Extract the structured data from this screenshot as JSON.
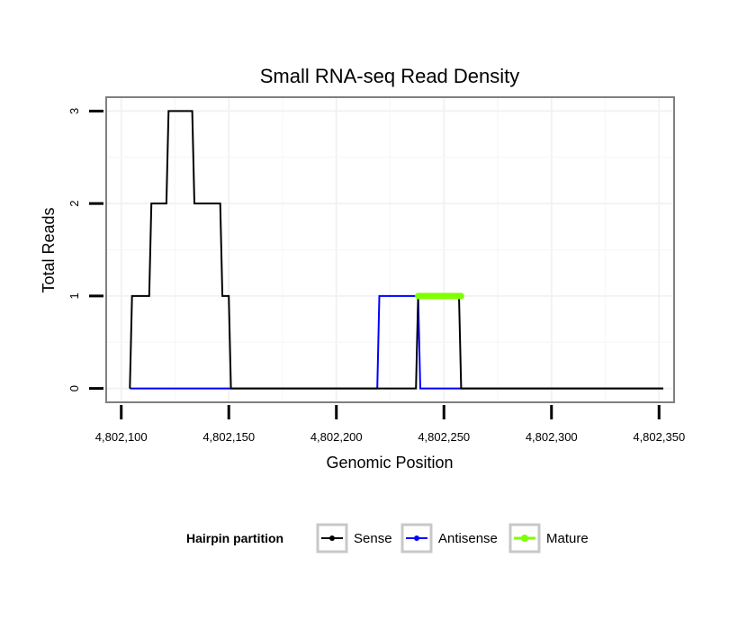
{
  "chart_data": {
    "type": "line",
    "title": "Small RNA-seq Read Density",
    "xlabel": "Genomic Position",
    "ylabel": "Total Reads",
    "xlim": [
      4802093,
      4802357
    ],
    "ylim": [
      -0.15,
      3.15
    ],
    "x_ticks": [
      4802100,
      4802150,
      4802200,
      4802250,
      4802300,
      4802350
    ],
    "x_tick_labels": [
      "4,802,100",
      "4,802,150",
      "4,802,200",
      "4,802,250",
      "4,802,300",
      "4,802,350"
    ],
    "y_ticks": [
      0,
      1,
      2,
      3
    ],
    "y_tick_labels": [
      "0",
      "1",
      "2",
      "3"
    ],
    "grid": true,
    "legend": {
      "title": "Hairpin partition",
      "position": "bottom",
      "entries": [
        "Sense",
        "Antisense",
        "Mature"
      ]
    },
    "series": [
      {
        "name": "Sense",
        "color": "#000000",
        "points": [
          [
            4802104,
            0
          ],
          [
            4802105,
            1
          ],
          [
            4802113,
            1
          ],
          [
            4802114,
            2
          ],
          [
            4802121,
            2
          ],
          [
            4802122,
            3
          ],
          [
            4802133,
            3
          ],
          [
            4802134,
            2
          ],
          [
            4802146,
            2
          ],
          [
            4802147,
            1
          ],
          [
            4802150,
            1
          ],
          [
            4802151,
            0
          ],
          [
            4802237,
            0
          ],
          [
            4802238,
            1
          ],
          [
            4802257,
            1
          ],
          [
            4802258,
            0
          ],
          [
            4802352,
            0
          ]
        ]
      },
      {
        "name": "Antisense",
        "color": "#0000ff",
        "points": [
          [
            4802104,
            0
          ],
          [
            4802219,
            0
          ],
          [
            4802220,
            1
          ],
          [
            4802238,
            1
          ],
          [
            4802239,
            0
          ],
          [
            4802352,
            0
          ]
        ]
      },
      {
        "name": "Mature",
        "color": "#7fff00",
        "points": [
          [
            4802238,
            1
          ],
          [
            4802258,
            1
          ]
        ]
      }
    ]
  }
}
